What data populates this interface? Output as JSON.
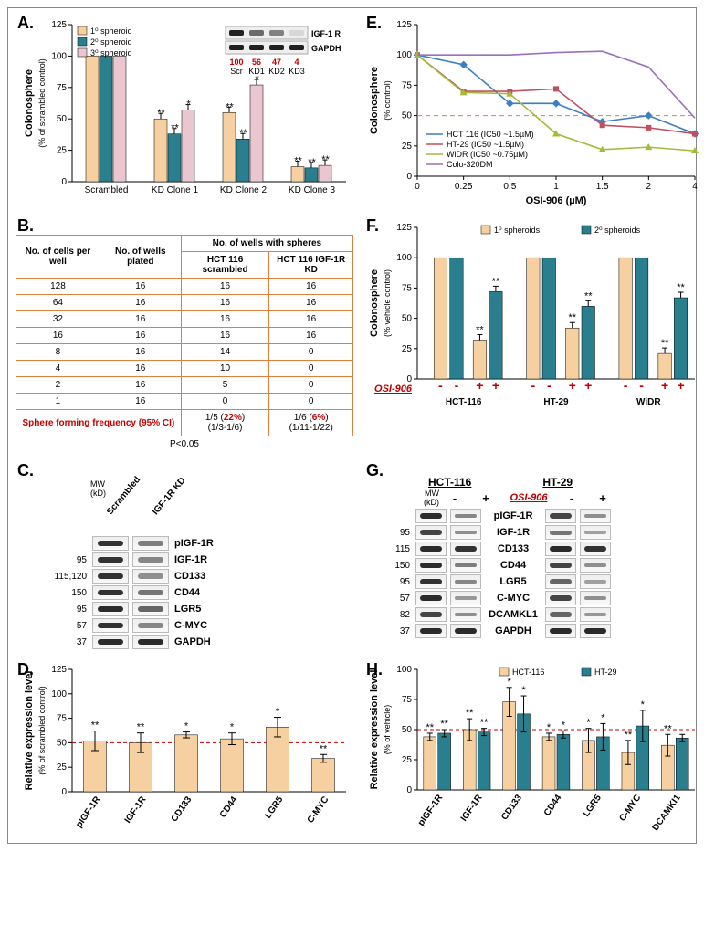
{
  "panelA": {
    "type": "bar",
    "ylabel": "Colonosphere",
    "ysub": "(% of scrambled control)",
    "ylim": [
      0,
      125
    ],
    "ytick_step": 25,
    "categories": [
      "Scrambled",
      "KD Clone 1",
      "KD Clone 2",
      "KD Clone 3"
    ],
    "series": [
      {
        "name": "1⁰ spheroid",
        "color": "#f6d0a0",
        "values": [
          100,
          50,
          55,
          12
        ],
        "sig": [
          "",
          "**",
          "**",
          "**"
        ]
      },
      {
        "name": "2⁰ spheroid",
        "color": "#2a7f8f",
        "values": [
          100,
          38,
          34,
          11
        ],
        "sig": [
          "",
          "**",
          "**",
          "**"
        ]
      },
      {
        "name": "3⁰ spheroid",
        "color": "#e9c6d0",
        "values": [
          100,
          57,
          77,
          13
        ],
        "sig": [
          "",
          "*",
          "*",
          "**"
        ]
      }
    ],
    "inset_labels": [
      "Scr",
      "KD1",
      "KD2",
      "KD3"
    ],
    "inset_vals": [
      "100",
      "56",
      "47",
      "4"
    ],
    "inset_proteins": [
      "IGF-1 R",
      "GAPDH"
    ]
  },
  "panelB": {
    "headers": [
      "No. of cells per well",
      "No. of wells plated",
      "HCT 116 scrambled",
      "HCT 116 IGF-1R KD"
    ],
    "superhead": "No. of wells with spheres",
    "rows": [
      [
        "128",
        "16",
        "16",
        "16"
      ],
      [
        "64",
        "16",
        "16",
        "16"
      ],
      [
        "32",
        "16",
        "16",
        "16"
      ],
      [
        "16",
        "16",
        "16",
        "16"
      ],
      [
        "8",
        "16",
        "14",
        "0"
      ],
      [
        "4",
        "16",
        "10",
        "0"
      ],
      [
        "2",
        "16",
        "5",
        "0"
      ],
      [
        "1",
        "16",
        "0",
        "0"
      ]
    ],
    "freq_label": "Sphere forming frequency (95% CI)",
    "freq_scr": "1/5 (22%) (1/3-1/6)",
    "freq_kd": "1/6 (6%) (1/11-1/22)",
    "pval": "P<0.05"
  },
  "panelC": {
    "head": [
      "Scrambled",
      "IGF-1R KD"
    ],
    "mw_label": "MW (kD)",
    "rows": [
      {
        "mw": "",
        "name": "pIGF-1R",
        "b": [
          0.9,
          0.45
        ]
      },
      {
        "mw": "95",
        "name": "IGF-1R",
        "b": [
          0.9,
          0.4
        ]
      },
      {
        "mw": "115,120",
        "name": "CD133",
        "b": [
          0.9,
          0.35
        ]
      },
      {
        "mw": "150",
        "name": "CD44",
        "b": [
          0.9,
          0.5
        ]
      },
      {
        "mw": "95",
        "name": "LGR5",
        "b": [
          0.95,
          0.6
        ]
      },
      {
        "mw": "57",
        "name": "C-MYC",
        "b": [
          0.9,
          0.4
        ]
      },
      {
        "mw": "37",
        "name": "GAPDH",
        "b": [
          0.95,
          0.95
        ]
      }
    ]
  },
  "panelD": {
    "type": "bar",
    "ylabel": "Relative expression level",
    "ysub": "(% of scrambled control)",
    "ylim": [
      0,
      125
    ],
    "ytick_step": 25,
    "categories": [
      "pIGF-1R",
      "IGF-1R",
      "CD133",
      "CD44",
      "LGR5",
      "C-MYC"
    ],
    "values": [
      52,
      50,
      58,
      54,
      66,
      34
    ],
    "errors": [
      10,
      10,
      3,
      6,
      10,
      4
    ],
    "sig": [
      "**",
      "**",
      "*",
      "*",
      "*",
      "**"
    ],
    "color": "#f6d0a0",
    "ref_line": 50,
    "ref_color": "#c00000"
  },
  "panelE": {
    "type": "line",
    "ylabel": "Colonosphere",
    "ysub": "(% control)",
    "xlabel": "OSI-906 (µM)",
    "ylim": [
      0,
      125
    ],
    "ytick_step": 25,
    "xcats": [
      "0",
      "0.25",
      "0.5",
      "1",
      "1.5",
      "2",
      "4"
    ],
    "ref_line": 50,
    "ref_color": "#e08040",
    "series": [
      {
        "name": "HCT 116 (IC50 ~1.5µM)",
        "color": "#3a7fc4",
        "marker": "diamond",
        "values": [
          100,
          92,
          60,
          60,
          45,
          50,
          35
        ]
      },
      {
        "name": "HT-29 (IC50 ~1.5µM)",
        "color": "#c05060",
        "marker": "square",
        "values": [
          100,
          70,
          70,
          72,
          42,
          40,
          35
        ]
      },
      {
        "name": "WiDR (IC50 ~0.75µM)",
        "color": "#a8b83a",
        "marker": "triangle",
        "values": [
          100,
          69,
          68,
          35,
          22,
          24,
          21
        ]
      },
      {
        "name": "Colo-320DM",
        "color": "#9a70b8",
        "marker": "none",
        "values": [
          100,
          100,
          100,
          102,
          103,
          90,
          48
        ]
      }
    ]
  },
  "panelF": {
    "type": "bar",
    "ylabel": "Colonosphere",
    "ysub": "(% vehicle control)",
    "ylim": [
      0,
      125
    ],
    "ytick_step": 25,
    "groups": [
      "HCT-116",
      "HT-29",
      "WiDR"
    ],
    "osi_label": "OSI-906",
    "series": [
      {
        "name": "1⁰ spheroids",
        "color": "#f6d0a0"
      },
      {
        "name": "2⁰ spheroids",
        "color": "#2a7f8f"
      }
    ],
    "data": [
      {
        "minus": [
          100,
          100
        ],
        "plus": [
          32,
          72
        ],
        "sig": [
          "**",
          "**"
        ]
      },
      {
        "minus": [
          100,
          100
        ],
        "plus": [
          42,
          60
        ],
        "sig": [
          "**",
          "**"
        ]
      },
      {
        "minus": [
          100,
          100
        ],
        "plus": [
          21,
          67
        ],
        "sig": [
          "**",
          "**"
        ]
      }
    ]
  },
  "panelG": {
    "groups": [
      "HCT-116",
      "HT-29"
    ],
    "osi_label": "OSI-906",
    "signs": [
      "-",
      "+"
    ],
    "mw_label": "MW (kD)",
    "rows": [
      {
        "mw": "",
        "name": "pIGF-1R",
        "b": [
          0.95,
          0.4,
          0.8,
          0.35
        ]
      },
      {
        "mw": "95",
        "name": "IGF-1R",
        "b": [
          0.8,
          0.35,
          0.5,
          0.25
        ]
      },
      {
        "mw": "115",
        "name": "CD133",
        "b": [
          0.95,
          0.9,
          0.95,
          0.9
        ]
      },
      {
        "mw": "150",
        "name": "CD44",
        "b": [
          0.95,
          0.45,
          0.8,
          0.35
        ]
      },
      {
        "mw": "95",
        "name": "LGR5",
        "b": [
          0.9,
          0.4,
          0.6,
          0.25
        ]
      },
      {
        "mw": "57",
        "name": "C-MYC",
        "b": [
          0.95,
          0.3,
          0.8,
          0.35
        ]
      },
      {
        "mw": "82",
        "name": "DCAMKL1",
        "b": [
          0.8,
          0.35,
          0.6,
          0.3
        ]
      },
      {
        "mw": "37",
        "name": "GAPDH",
        "b": [
          0.95,
          0.95,
          0.95,
          0.95
        ]
      }
    ]
  },
  "panelH": {
    "type": "bar",
    "ylabel": "Relative expression level",
    "ysub": "(% of vehicle)",
    "ylim": [
      0,
      100
    ],
    "ytick_step": 25,
    "categories": [
      "pIGF-1R",
      "IGF-1R",
      "CD133",
      "CD44",
      "LGR5",
      "C-MYC",
      "DCAMKI1"
    ],
    "series": [
      {
        "name": "HCT-116",
        "color": "#f6d0a0",
        "values": [
          44,
          50,
          73,
          44,
          41,
          31,
          37
        ],
        "errors": [
          3,
          9,
          12,
          3,
          10,
          10,
          9
        ],
        "sig": [
          "**",
          "**",
          "*",
          "*",
          "*",
          "**",
          "**"
        ]
      },
      {
        "name": "HT-29",
        "color": "#2a7f8f",
        "values": [
          47,
          48,
          63,
          46,
          44,
          53,
          43
        ],
        "errors": [
          3,
          3,
          15,
          3,
          11,
          13,
          3
        ],
        "sig": [
          "**",
          "**",
          "*",
          "*",
          "*",
          "*",
          ""
        ]
      }
    ],
    "ref_line": 50,
    "ref_color": "#c00000"
  }
}
